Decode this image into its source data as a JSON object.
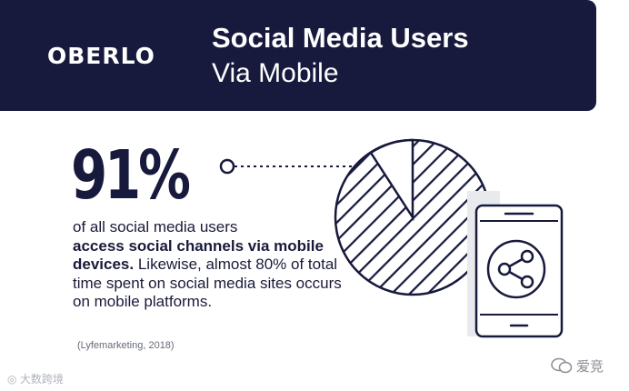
{
  "header": {
    "logo": "OBERLO",
    "title": "Social Media Users",
    "subtitle": "Via Mobile"
  },
  "stat": {
    "value": "91%",
    "desc_line1": "of all social media users",
    "desc_bold": "access social channels via mobile devices.",
    "desc_rest": " Likewise, almost 80% of total time spent on social media sites occurs on mobile platforms.",
    "source": "(Lyfemarketing, 2018)"
  },
  "illustration": {
    "pie_icon": "pie-chart-icon",
    "phone_icon": "smartphone-icon",
    "share_icon": "share-icon"
  },
  "watermarks": {
    "left": "大数跨境",
    "right": "爱竞"
  },
  "colors": {
    "navy": "#171a3d",
    "white": "#ffffff"
  }
}
